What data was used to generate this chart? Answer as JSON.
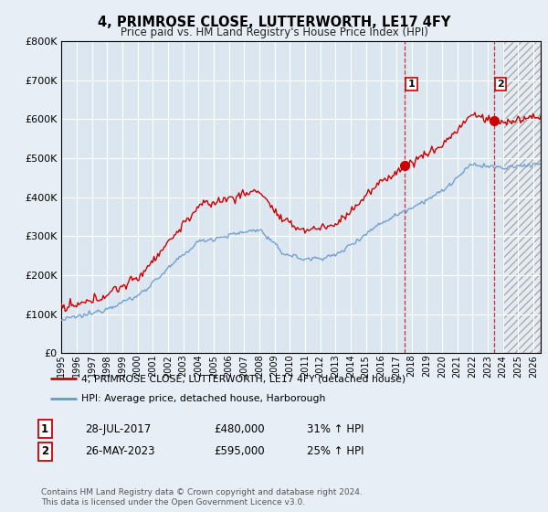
{
  "title": "4, PRIMROSE CLOSE, LUTTERWORTH, LE17 4FY",
  "subtitle": "Price paid vs. HM Land Registry's House Price Index (HPI)",
  "ylim": [
    0,
    800000
  ],
  "xlim_start": 1995.0,
  "xlim_end": 2026.5,
  "background_color": "#e8eef5",
  "plot_bg_color": "#dce6f0",
  "grid_color": "#ffffff",
  "hpi_color": "#6699cc",
  "price_color": "#cc0000",
  "sale1_x": 2017.57,
  "sale1_y": 480000,
  "sale2_x": 2023.41,
  "sale2_y": 595000,
  "hatch_start": 2024.0,
  "legend_label1": "4, PRIMROSE CLOSE, LUTTERWORTH, LE17 4FY (detached house)",
  "legend_label2": "HPI: Average price, detached house, Harborough",
  "table_row1": [
    "1",
    "28-JUL-2017",
    "£480,000",
    "31% ↑ HPI"
  ],
  "table_row2": [
    "2",
    "26-MAY-2023",
    "£595,000",
    "25% ↑ HPI"
  ],
  "footer": "Contains HM Land Registry data © Crown copyright and database right 2024.\nThis data is licensed under the Open Government Licence v3.0."
}
